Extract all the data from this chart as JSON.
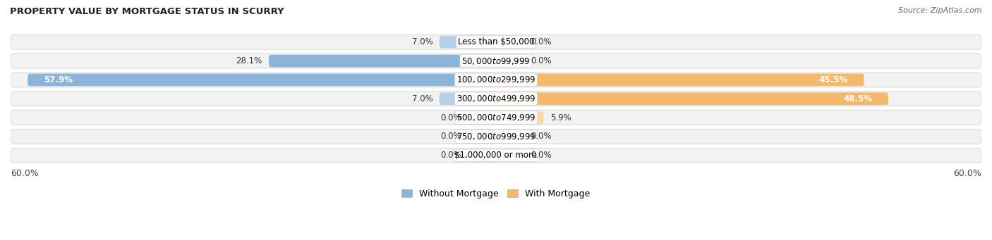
{
  "title": "PROPERTY VALUE BY MORTGAGE STATUS IN SCURRY",
  "source": "Source: ZipAtlas.com",
  "categories": [
    "Less than $50,000",
    "$50,000 to $99,999",
    "$100,000 to $299,999",
    "$300,000 to $499,999",
    "$500,000 to $749,999",
    "$750,000 to $999,999",
    "$1,000,000 or more"
  ],
  "without_mortgage": [
    7.0,
    28.1,
    57.9,
    7.0,
    0.0,
    0.0,
    0.0
  ],
  "with_mortgage": [
    0.0,
    0.0,
    45.5,
    48.5,
    5.9,
    0.0,
    0.0
  ],
  "x_max": 60.0,
  "color_without": "#8cb4d8",
  "color_with": "#f5b96e",
  "color_without_light": "#b8cfe8",
  "color_with_light": "#f9d9a8",
  "bg_row_even": "#f2f2f2",
  "bg_row_odd": "#e8e8e8",
  "label_fontsize": 8.5,
  "title_fontsize": 9.5,
  "source_fontsize": 8,
  "legend_without": "Without Mortgage",
  "legend_with": "With Mortgage",
  "axis_label_left": "60.0%",
  "axis_label_right": "60.0%",
  "stub_size": 3.5
}
